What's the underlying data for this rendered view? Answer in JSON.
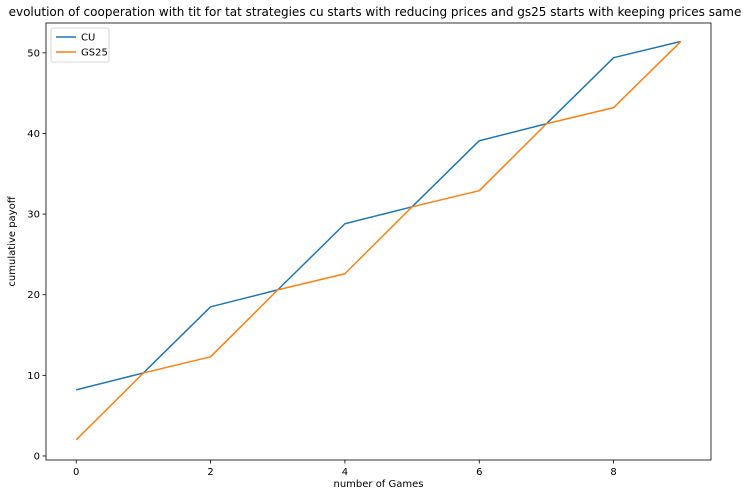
{
  "chart_data": {
    "type": "line",
    "title": "evolution of cooperation with tit for tat strategies cu starts with reducing prices and gs25 starts with keeping prices same",
    "xlabel": "number of Games",
    "ylabel": "cumulative payoff",
    "x": [
      0,
      1,
      2,
      3,
      4,
      5,
      6,
      7,
      8,
      9
    ],
    "xlim": [
      -0.45,
      9.45
    ],
    "ylim": [
      -0.5,
      53.7
    ],
    "xticks": [
      0,
      2,
      4,
      6,
      8
    ],
    "yticks": [
      0,
      10,
      20,
      30,
      40,
      50
    ],
    "grid": false,
    "legend": "upper-left",
    "series": [
      {
        "name": "CU",
        "color": "#1f77b4",
        "values": [
          8.2,
          10.3,
          18.5,
          20.6,
          28.8,
          30.9,
          39.1,
          41.2,
          49.4,
          51.4
        ]
      },
      {
        "name": "GS25",
        "color": "#ff7f0e",
        "values": [
          2.0,
          10.3,
          12.3,
          20.6,
          22.6,
          30.9,
          32.9,
          41.2,
          43.2,
          51.4
        ]
      }
    ]
  }
}
